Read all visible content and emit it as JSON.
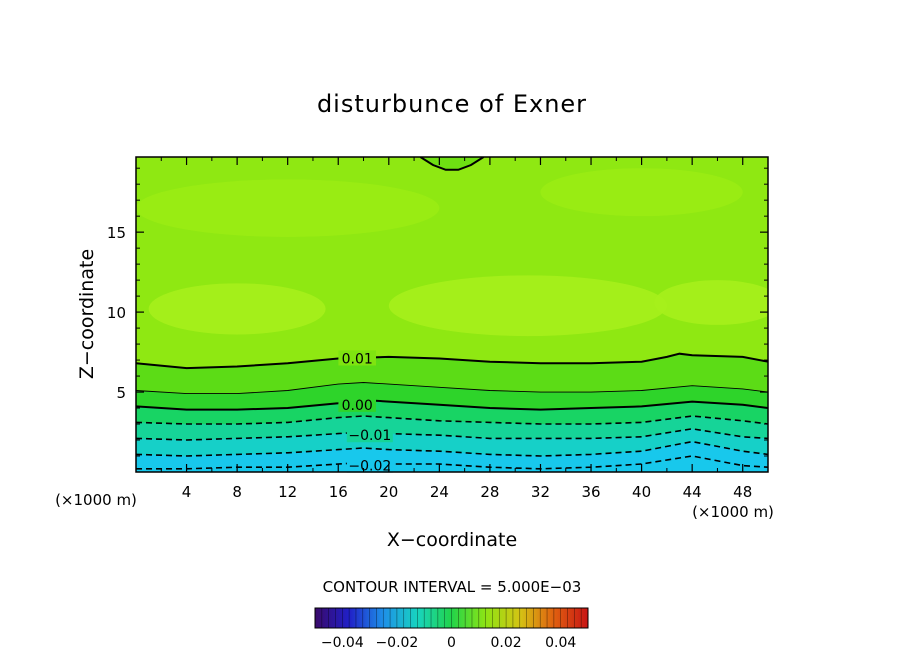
{
  "chart_data": {
    "type": "heatmap",
    "title": "disturbunce of Exner",
    "xlabel": "X−coordinate",
    "ylabel": "Z−coordinate",
    "xunit": "(×1000 m)",
    "zunit": "(×1000 m)",
    "xlim": [
      0,
      50
    ],
    "ylim": [
      0,
      19.7
    ],
    "xticks": [
      4,
      8,
      12,
      16,
      20,
      24,
      28,
      32,
      36,
      40,
      44,
      48
    ],
    "yticks": [
      5,
      10,
      15
    ],
    "contour_interval_label": "CONTOUR INTERVAL = 5.000E−03",
    "contour_interval": 0.005,
    "contour_labels": [
      {
        "text": "0.01",
        "value": 0.01,
        "x": 17.5,
        "z": 7.1
      },
      {
        "text": "0.00",
        "value": 0.0,
        "x": 17.5,
        "z": 4.2
      },
      {
        "text": "−0.01",
        "value": -0.01,
        "x": 18.5,
        "z": 2.3
      },
      {
        "text": "−0.02",
        "value": -0.02,
        "x": 18.5,
        "z": 0.4
      }
    ],
    "contours": [
      {
        "value": 0.01,
        "style": "solid-bold",
        "x": [
          0,
          4,
          8,
          12,
          16,
          20,
          24,
          28,
          32,
          36,
          40,
          42,
          43,
          44,
          48,
          50
        ],
        "z": [
          6.8,
          6.5,
          6.6,
          6.8,
          7.1,
          7.2,
          7.1,
          6.9,
          6.8,
          6.8,
          6.9,
          7.2,
          7.4,
          7.3,
          7.2,
          6.9
        ]
      },
      {
        "value": 0.005,
        "style": "solid-thin",
        "x": [
          0,
          4,
          8,
          12,
          16,
          18,
          20,
          24,
          28,
          32,
          36,
          40,
          44,
          48,
          50
        ],
        "z": [
          5.1,
          4.9,
          4.9,
          5.1,
          5.5,
          5.6,
          5.5,
          5.3,
          5.1,
          5.0,
          5.0,
          5.1,
          5.4,
          5.2,
          5.0
        ]
      },
      {
        "value": 0.0,
        "style": "solid-bold",
        "x": [
          0,
          4,
          8,
          12,
          16,
          18,
          20,
          24,
          28,
          32,
          36,
          40,
          44,
          48,
          50
        ],
        "z": [
          4.1,
          3.9,
          3.9,
          4.0,
          4.3,
          4.5,
          4.4,
          4.2,
          4.0,
          3.9,
          4.0,
          4.1,
          4.4,
          4.2,
          4.0
        ]
      },
      {
        "value": -0.005,
        "style": "dashed",
        "x": [
          0,
          4,
          8,
          12,
          16,
          18,
          20,
          24,
          28,
          32,
          36,
          40,
          44,
          48,
          50
        ],
        "z": [
          3.1,
          3.0,
          3.0,
          3.1,
          3.4,
          3.5,
          3.4,
          3.2,
          3.1,
          3.0,
          3.0,
          3.1,
          3.5,
          3.2,
          3.0
        ]
      },
      {
        "value": -0.01,
        "style": "dashed",
        "x": [
          0,
          4,
          8,
          12,
          16,
          18,
          20,
          24,
          28,
          32,
          36,
          40,
          44,
          48,
          50
        ],
        "z": [
          2.1,
          2.0,
          2.1,
          2.2,
          2.4,
          2.5,
          2.4,
          2.3,
          2.1,
          2.1,
          2.1,
          2.2,
          2.7,
          2.2,
          2.1
        ]
      },
      {
        "value": -0.015,
        "style": "dashed",
        "x": [
          0,
          4,
          8,
          12,
          16,
          18,
          20,
          24,
          28,
          32,
          36,
          40,
          44,
          48,
          50
        ],
        "z": [
          1.1,
          1.0,
          1.1,
          1.2,
          1.4,
          1.5,
          1.4,
          1.3,
          1.1,
          1.0,
          1.1,
          1.3,
          1.9,
          1.3,
          1.1
        ]
      },
      {
        "value": -0.02,
        "style": "dashed",
        "x": [
          0,
          4,
          8,
          12,
          16,
          18,
          20,
          24,
          28,
          32,
          36,
          40,
          44,
          48,
          50
        ],
        "z": [
          0.2,
          0.2,
          0.3,
          0.3,
          0.5,
          0.6,
          0.5,
          0.5,
          0.3,
          0.2,
          0.3,
          0.5,
          1.0,
          0.4,
          0.3
        ]
      },
      {
        "value": 0.015,
        "style": "solid-bold",
        "x": [
          22.5,
          23.5,
          24.5,
          25.5,
          26.5,
          27.5
        ],
        "z": [
          19.7,
          19.2,
          18.9,
          18.9,
          19.2,
          19.7
        ]
      }
    ],
    "fill_bands": [
      {
        "from": 0.02,
        "color": "#8fe812"
      },
      {
        "from": 0.015,
        "color": "#a6f01c"
      },
      {
        "from": 0.012,
        "color": "#9aec14"
      },
      {
        "from": 0.01,
        "color": "#7fe410"
      },
      {
        "from": 0.005,
        "color": "#5cdc16"
      },
      {
        "from": 0.0,
        "color": "#2ed42a"
      },
      {
        "from": -0.005,
        "color": "#18d464"
      },
      {
        "from": -0.01,
        "color": "#16d498"
      },
      {
        "from": -0.015,
        "color": "#16d0c8"
      },
      {
        "from": -0.02,
        "color": "#18c8ec"
      }
    ],
    "colorbar": {
      "ticks": [
        "−0.04",
        "−0.02",
        "0",
        "0.02",
        "0.04"
      ],
      "tick_values": [
        -0.04,
        -0.02,
        0,
        0.02,
        0.04
      ],
      "range": [
        -0.05,
        0.05
      ],
      "colors": [
        "#3a0a6a",
        "#2020c8",
        "#1e90e8",
        "#18d4c0",
        "#22d44a",
        "#8ee414",
        "#d4c414",
        "#e06010",
        "#c81414"
      ]
    }
  }
}
